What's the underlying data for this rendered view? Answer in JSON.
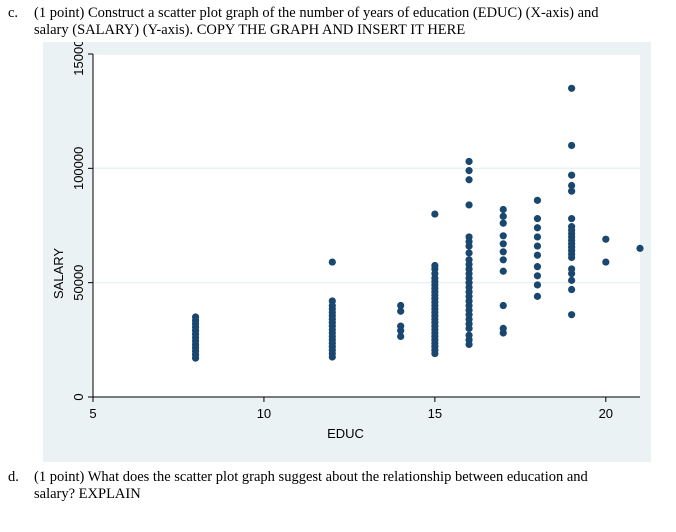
{
  "question_c": {
    "label": "c.",
    "line1": "(1 point) Construct a scatter plot graph of the number of years of education (EDUC) (X-axis) and",
    "line2": "salary (SALARY) (Y-axis). COPY THE GRAPH AND INSERT IT HERE"
  },
  "question_d": {
    "label": "d.",
    "line1": "(1 point) What does the scatter plot graph suggest about the relationship between education and",
    "line2": "salary? EXPLAIN"
  },
  "chart_data": {
    "type": "scatter",
    "title": "",
    "xlabel": "EDUC",
    "ylabel": "SALARY",
    "xlim": [
      5,
      21
    ],
    "ylim": [
      0,
      150000
    ],
    "xticks": [
      "5",
      "10",
      "15",
      "20"
    ],
    "yticks": [
      "0",
      "50000",
      "100000",
      "150000"
    ],
    "marker_color": "#1a476f",
    "plot_background": "#eaf2f3",
    "grid": true,
    "series": [
      {
        "name": "SALARY",
        "points": [
          [
            8,
            17000
          ],
          [
            8,
            18500
          ],
          [
            8,
            20000
          ],
          [
            8,
            21500
          ],
          [
            8,
            23000
          ],
          [
            8,
            24500
          ],
          [
            8,
            26000
          ],
          [
            8,
            27500
          ],
          [
            8,
            29000
          ],
          [
            8,
            30500
          ],
          [
            8,
            32000
          ],
          [
            8,
            33500
          ],
          [
            8,
            35000
          ],
          [
            12,
            17500
          ],
          [
            12,
            19000
          ],
          [
            12,
            20500
          ],
          [
            12,
            22000
          ],
          [
            12,
            23500
          ],
          [
            12,
            25000
          ],
          [
            12,
            26500
          ],
          [
            12,
            28000
          ],
          [
            12,
            29500
          ],
          [
            12,
            31000
          ],
          [
            12,
            32500
          ],
          [
            12,
            34000
          ],
          [
            12,
            35500
          ],
          [
            12,
            37000
          ],
          [
            12,
            38500
          ],
          [
            12,
            40000
          ],
          [
            12,
            42000
          ],
          [
            12,
            59000
          ],
          [
            14,
            26500
          ],
          [
            14,
            29000
          ],
          [
            14,
            31000
          ],
          [
            14,
            37500
          ],
          [
            14,
            40000
          ],
          [
            15,
            19000
          ],
          [
            15,
            20500
          ],
          [
            15,
            22000
          ],
          [
            15,
            23500
          ],
          [
            15,
            25000
          ],
          [
            15,
            26500
          ],
          [
            15,
            28000
          ],
          [
            15,
            29500
          ],
          [
            15,
            31000
          ],
          [
            15,
            32500
          ],
          [
            15,
            34000
          ],
          [
            15,
            35500
          ],
          [
            15,
            37000
          ],
          [
            15,
            38500
          ],
          [
            15,
            40000
          ],
          [
            15,
            41500
          ],
          [
            15,
            43000
          ],
          [
            15,
            44500
          ],
          [
            15,
            46000
          ],
          [
            15,
            47500
          ],
          [
            15,
            49000
          ],
          [
            15,
            50500
          ],
          [
            15,
            52000
          ],
          [
            15,
            54000
          ],
          [
            15,
            56000
          ],
          [
            15,
            57500
          ],
          [
            15,
            80000
          ],
          [
            16,
            23000
          ],
          [
            16,
            25000
          ],
          [
            16,
            27000
          ],
          [
            16,
            30000
          ],
          [
            16,
            32000
          ],
          [
            16,
            34000
          ],
          [
            16,
            36000
          ],
          [
            16,
            38000
          ],
          [
            16,
            40000
          ],
          [
            16,
            42000
          ],
          [
            16,
            44000
          ],
          [
            16,
            46000
          ],
          [
            16,
            48000
          ],
          [
            16,
            50000
          ],
          [
            16,
            52000
          ],
          [
            16,
            54000
          ],
          [
            16,
            56000
          ],
          [
            16,
            58000
          ],
          [
            16,
            60000
          ],
          [
            16,
            63000
          ],
          [
            16,
            66000
          ],
          [
            16,
            68000
          ],
          [
            16,
            70000
          ],
          [
            16,
            84000
          ],
          [
            16,
            95000
          ],
          [
            16,
            99000
          ],
          [
            16,
            103000
          ],
          [
            17,
            28000
          ],
          [
            17,
            30000
          ],
          [
            17,
            40000
          ],
          [
            17,
            55000
          ],
          [
            17,
            60000
          ],
          [
            17,
            63500
          ],
          [
            17,
            67000
          ],
          [
            17,
            70500
          ],
          [
            17,
            76000
          ],
          [
            17,
            79000
          ],
          [
            17,
            82000
          ],
          [
            18,
            44000
          ],
          [
            18,
            49000
          ],
          [
            18,
            53000
          ],
          [
            18,
            57000
          ],
          [
            18,
            62000
          ],
          [
            18,
            66000
          ],
          [
            18,
            70000
          ],
          [
            18,
            74000
          ],
          [
            18,
            78000
          ],
          [
            18,
            86000
          ],
          [
            19,
            36000
          ],
          [
            19,
            47000
          ],
          [
            19,
            51000
          ],
          [
            19,
            54000
          ],
          [
            19,
            56000
          ],
          [
            19,
            61000
          ],
          [
            19,
            62500
          ],
          [
            19,
            64000
          ],
          [
            19,
            65500
          ],
          [
            19,
            67000
          ],
          [
            19,
            68500
          ],
          [
            19,
            70000
          ],
          [
            19,
            71500
          ],
          [
            19,
            73000
          ],
          [
            19,
            74500
          ],
          [
            19,
            78000
          ],
          [
            19,
            90000
          ],
          [
            19,
            92500
          ],
          [
            19,
            97000
          ],
          [
            19,
            110000
          ],
          [
            19,
            135000
          ],
          [
            20,
            59000
          ],
          [
            20,
            69000
          ],
          [
            21,
            65000
          ]
        ]
      }
    ]
  }
}
